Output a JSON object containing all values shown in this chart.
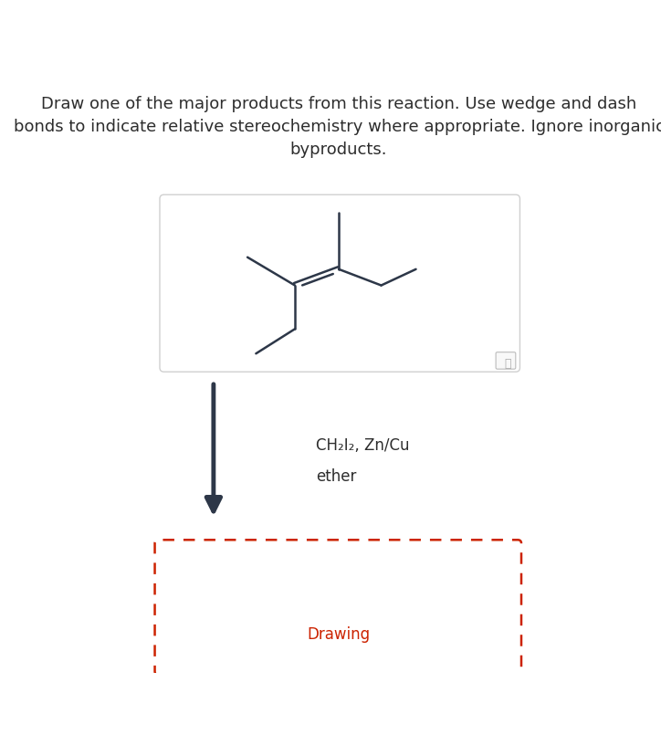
{
  "title_text": "Draw one of the major products from this reaction. Use wedge and dash\nbonds to indicate relative stereochemistry where appropriate. Ignore inorganic\nbyproducts.",
  "title_fontsize": 13,
  "title_color": "#2d2d2d",
  "reagent_line1": "CH₂I₂, Zn/Cu",
  "reagent_line2": "ether",
  "reagent_fontsize": 12,
  "reagent_color": "#2d2d2d",
  "drawing_label": "Drawing",
  "drawing_label_color": "#cc2200",
  "drawing_label_fontsize": 12,
  "molecule_color": "#2d3748",
  "molecule_lw": 1.8,
  "box_edge_color": "#d0d0d0",
  "box_bg": "#ffffff",
  "dashed_box_color": "#cc2200",
  "arrow_color": "#2d3748",
  "magnifier_color": "#aaaaaa"
}
